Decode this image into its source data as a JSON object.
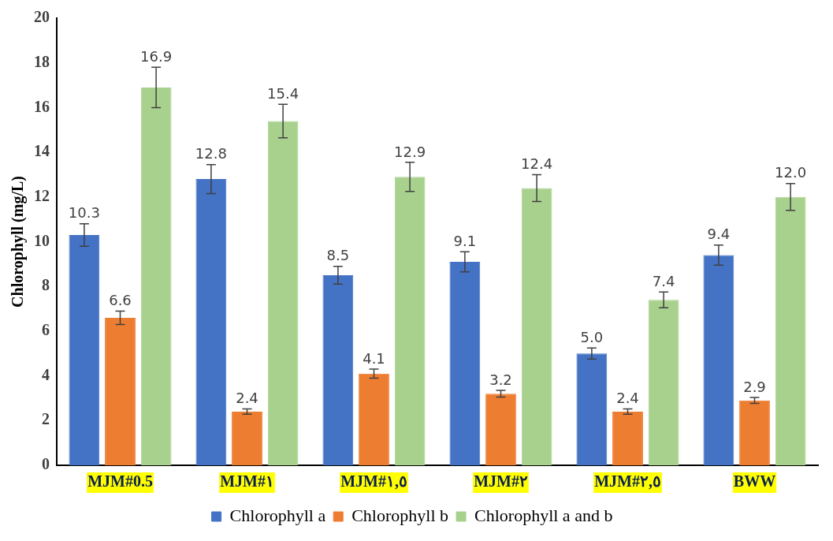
{
  "chart_data": {
    "type": "bar",
    "ylabel": "Chlorophyll (mg/L)",
    "categories": [
      "MJM#0.5",
      "MJM#١",
      "MJM#١,٥",
      "MJM#٢",
      "MJM#٢,٥",
      "BWW"
    ],
    "series": [
      {
        "name": "Chlorophyll a",
        "color": "#4472c4",
        "values": [
          10.3,
          12.8,
          8.5,
          9.1,
          5.0,
          9.4
        ],
        "value_labels": [
          "10.3",
          "12.8",
          "8.5",
          "9.1",
          "5.0",
          "9.4"
        ],
        "errors": [
          0.5,
          0.65,
          0.4,
          0.45,
          0.25,
          0.45
        ]
      },
      {
        "name": "Chlorophyll b",
        "color": "#ed7d31",
        "values": [
          6.6,
          2.4,
          4.1,
          3.2,
          2.4,
          2.9
        ],
        "value_labels": [
          "6.6",
          "2.4",
          "4.1",
          "3.2",
          "2.4",
          "2.9"
        ],
        "errors": [
          0.3,
          0.12,
          0.2,
          0.15,
          0.12,
          0.13
        ]
      },
      {
        "name": "Chlorophyll a and b",
        "color": "#a9d18e",
        "values": [
          16.9,
          15.4,
          12.9,
          12.4,
          7.4,
          12.0
        ],
        "value_labels": [
          "16.9",
          "15.4",
          "12.9",
          "12.4",
          "7.4",
          "12.0"
        ],
        "errors": [
          0.9,
          0.75,
          0.65,
          0.6,
          0.35,
          0.6
        ]
      }
    ],
    "ylim": [
      0,
      20
    ],
    "yticks": [
      0,
      2,
      4,
      6,
      8,
      10,
      12,
      14,
      16,
      18,
      20
    ],
    "grid": false,
    "legend": "bottom"
  }
}
